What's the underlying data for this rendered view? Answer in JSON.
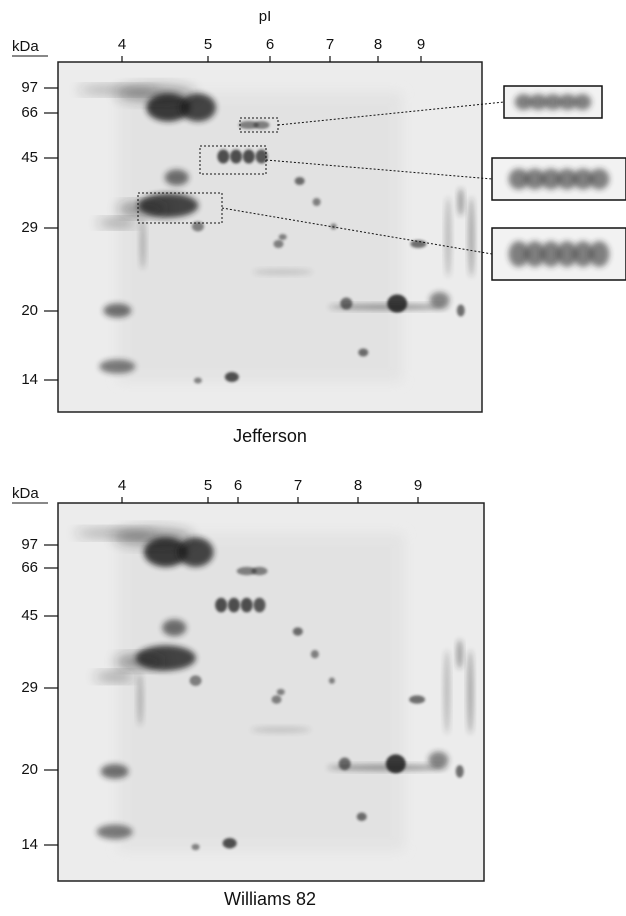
{
  "x_axis_title": "pI",
  "panels": [
    {
      "name": "Jefferson",
      "y_axis_title": "kDa",
      "pi_labels": [
        "4",
        "5",
        "6",
        "7",
        "8",
        "9"
      ],
      "kda_labels": [
        "97",
        "66",
        "45",
        "29",
        "20",
        "14"
      ]
    },
    {
      "name": "Williams 82",
      "y_axis_title": "kDa",
      "pi_labels": [
        "4",
        "5",
        "6",
        "7",
        "8",
        "9"
      ],
      "kda_labels": [
        "97",
        "66",
        "45",
        "29",
        "20",
        "14"
      ]
    }
  ]
}
